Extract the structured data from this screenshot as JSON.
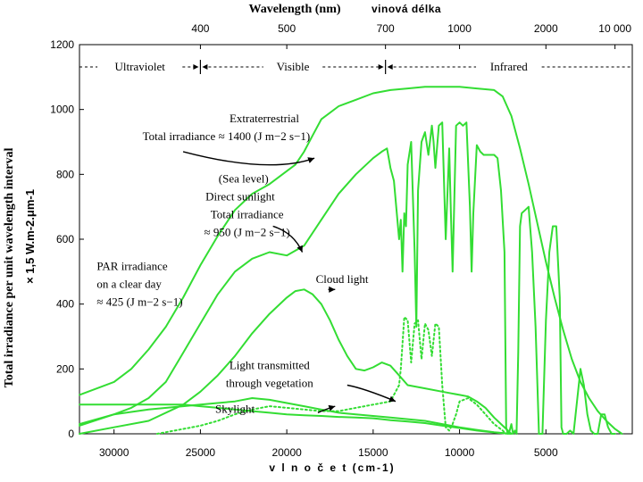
{
  "chart_data": {
    "type": "line",
    "title": "",
    "top_axis_title": "Wavelength (nm)",
    "top_axis_title_czech": "vinová délka",
    "xlabel": "v l n o č e t  (cm-1)",
    "ylabel": "Total irradiance per unit wavelength interval",
    "ylabel_units": "× 1,5 W.m-2.μm-1",
    "xlim": [
      32000,
      0
    ],
    "ylim": [
      0,
      1200
    ],
    "x_ticks": [
      30000,
      25000,
      20000,
      15000,
      10000,
      5000
    ],
    "x_tick_labels": [
      "30000",
      "25000",
      "20000",
      "15000",
      "10000",
      "5000"
    ],
    "y_ticks": [
      0,
      200,
      400,
      600,
      800,
      1000,
      1200
    ],
    "y_tick_labels": [
      "0",
      "200",
      "400",
      "600",
      "800",
      "1000",
      "1200"
    ],
    "top_ticks": [
      {
        "label": "400",
        "wavenumber": 25000
      },
      {
        "label": "500",
        "wavenumber": 20000
      },
      {
        "label": "700",
        "wavenumber": 14286
      },
      {
        "label": "1000",
        "wavenumber": 10000
      },
      {
        "label": "2000",
        "wavenumber": 5000
      },
      {
        "label": "10 000",
        "wavenumber": 1000
      }
    ],
    "regions": [
      {
        "name": "Ultraviolet",
        "from": 32000,
        "to": 25000
      },
      {
        "name": "Visible",
        "from": 25000,
        "to": 14286
      },
      {
        "name": "Infrared",
        "from": 14286,
        "to": 0
      }
    ],
    "color": "#33dd33",
    "series": [
      {
        "name": "Extraterrestrial",
        "style": "solid",
        "x": [
          32000,
          30000,
          29000,
          28000,
          27000,
          26000,
          25000,
          24000,
          23000,
          22000,
          21000,
          20000,
          19500,
          19000,
          18500,
          18000,
          17000,
          16000,
          15000,
          14000,
          13000,
          12000,
          11000,
          10000,
          9000,
          8000,
          7500,
          7000,
          6500,
          6000,
          5500,
          5000,
          4500,
          4000,
          3500,
          3000,
          2500,
          2000,
          1500,
          1000,
          600
        ],
        "values": [
          120,
          160,
          200,
          260,
          330,
          420,
          520,
          610,
          690,
          740,
          770,
          810,
          830,
          870,
          920,
          970,
          1010,
          1030,
          1050,
          1060,
          1065,
          1070,
          1070,
          1070,
          1065,
          1060,
          1040,
          980,
          880,
          770,
          650,
          530,
          420,
          320,
          230,
          160,
          110,
          70,
          40,
          15,
          0
        ]
      },
      {
        "name": "Direct sunlight (sea level)",
        "style": "solid",
        "x": [
          32000,
          30000,
          29000,
          28000,
          27000,
          26000,
          25000,
          24000,
          23000,
          22000,
          21000,
          20000,
          19000,
          18000,
          17000,
          16000,
          15000,
          14500,
          14200,
          14100,
          14000,
          13800,
          13500,
          13400,
          13300,
          13200,
          13100,
          13000,
          12800,
          12600,
          12500,
          12400,
          12200,
          12000,
          11800,
          11600,
          11500,
          11400,
          11200,
          11000,
          10800,
          10600,
          10500,
          10400,
          10200,
          10000,
          9800,
          9600,
          9400,
          9300,
          9200,
          9000,
          8800,
          8600,
          8400,
          8200,
          8000,
          7800,
          7600,
          7400,
          7300,
          7200,
          7100,
          7000,
          6900,
          6800,
          6700,
          6600,
          6500,
          6400,
          6200,
          6000,
          5800,
          5600,
          5400,
          5300,
          5200,
          5000,
          4800,
          4600,
          4400,
          4200,
          4100,
          4000,
          3800,
          3600,
          3400,
          3200,
          3000,
          2800,
          2600,
          2400,
          2200,
          2000,
          1800,
          1600,
          1400,
          1200,
          1000
        ],
        "values": [
          30,
          60,
          80,
          110,
          160,
          250,
          340,
          430,
          500,
          540,
          560,
          550,
          580,
          660,
          740,
          800,
          850,
          870,
          880,
          850,
          820,
          780,
          600,
          660,
          500,
          680,
          640,
          830,
          900,
          560,
          330,
          750,
          900,
          930,
          860,
          950,
          900,
          820,
          950,
          960,
          600,
          880,
          680,
          500,
          950,
          960,
          950,
          960,
          700,
          500,
          680,
          890,
          870,
          860,
          860,
          860,
          860,
          850,
          750,
          560,
          20,
          0,
          10,
          30,
          0,
          10,
          0,
          250,
          640,
          680,
          690,
          700,
          560,
          330,
          0,
          0,
          0,
          350,
          560,
          640,
          640,
          420,
          20,
          0,
          0,
          10,
          0,
          100,
          200,
          150,
          60,
          10,
          0,
          0,
          60,
          60,
          20,
          0,
          0
        ]
      },
      {
        "name": "Cloud light",
        "style": "solid",
        "x": [
          32000,
          30000,
          28000,
          26000,
          25000,
          24000,
          23000,
          22000,
          21000,
          20000,
          19500,
          19000,
          18500,
          18000,
          17500,
          17000,
          16500,
          16000,
          15500,
          15000,
          14500,
          14000,
          13500,
          13000,
          12000,
          11000,
          10000,
          9500,
          9000,
          8500,
          8000,
          7500,
          7000
        ],
        "values": [
          0,
          20,
          40,
          90,
          130,
          180,
          240,
          310,
          370,
          420,
          440,
          445,
          430,
          400,
          350,
          290,
          240,
          200,
          195,
          205,
          220,
          210,
          180,
          150,
          140,
          130,
          120,
          115,
          100,
          80,
          50,
          25,
          0
        ]
      },
      {
        "name": "Skylight",
        "style": "solid",
        "x": [
          32000,
          30000,
          28000,
          26000,
          25000,
          24000,
          23000,
          22000,
          21000,
          20000,
          19000,
          18000,
          17000,
          16000,
          15000,
          14000,
          13000,
          12000,
          11000,
          10000,
          9000,
          8000,
          7000
        ],
        "values": [
          25,
          60,
          75,
          85,
          90,
          95,
          100,
          110,
          105,
          95,
          85,
          75,
          65,
          60,
          55,
          50,
          45,
          40,
          30,
          20,
          12,
          5,
          0
        ]
      },
      {
        "name": "PAR irradiance on a clear day",
        "style": "solid",
        "x": [
          32000,
          30000,
          28000,
          26000,
          25000,
          24000,
          23000,
          22000,
          21000,
          20000,
          19000,
          18000,
          17000,
          16000,
          15000,
          14500,
          14000,
          13000,
          12000,
          11000,
          10000,
          9000,
          8000,
          7000
        ],
        "values": [
          90,
          90,
          90,
          90,
          85,
          80,
          75,
          70,
          65,
          60,
          57,
          55,
          52,
          50,
          48,
          45,
          42,
          38,
          33,
          25,
          18,
          10,
          4,
          0
        ]
      },
      {
        "name": "Light transmitted through vegetation",
        "style": "dotted",
        "x": [
          27500,
          26000,
          25000,
          24000,
          23000,
          22000,
          21000,
          20000,
          19000,
          18000,
          17000,
          16000,
          15000,
          14500,
          14000,
          13500,
          13400,
          13200,
          13000,
          12800,
          12600,
          12400,
          12200,
          12000,
          11800,
          11600,
          11400,
          11200,
          11000,
          10800,
          10600,
          10400,
          10200,
          10000,
          9500,
          9000,
          8500,
          8000,
          7500,
          7300
        ],
        "values": [
          0,
          15,
          25,
          40,
          60,
          75,
          85,
          80,
          75,
          70,
          70,
          80,
          90,
          95,
          100,
          150,
          200,
          360,
          350,
          220,
          340,
          350,
          230,
          340,
          320,
          240,
          340,
          330,
          150,
          20,
          10,
          30,
          60,
          100,
          110,
          90,
          60,
          30,
          10,
          0
        ]
      }
    ],
    "annotations": [
      {
        "text": "Extraterrestrial",
        "x": 21300,
        "y": 960
      },
      {
        "text": "Total irradiance ≈ 1400 (J m−2 s−1)",
        "x": 23500,
        "y": 905
      },
      {
        "text": "(Sea level)",
        "x": 22500,
        "y": 775
      },
      {
        "text": "Direct sunlight",
        "x": 22700,
        "y": 720
      },
      {
        "text": "Total irradiance",
        "x": 22300,
        "y": 665
      },
      {
        "text": "≈ 950 (J m−2 s−1)",
        "x": 22300,
        "y": 610
      },
      {
        "text": "Cloud light",
        "x": 16800,
        "y": 465
      },
      {
        "text": "PAR irradiance",
        "x": 31000,
        "y": 505
      },
      {
        "text": "on a clear day",
        "x": 31000,
        "y": 450
      },
      {
        "text": "≈ 425 (J m−2 s−1)",
        "x": 31000,
        "y": 395
      },
      {
        "text": "Light transmitted",
        "x": 21000,
        "y": 200
      },
      {
        "text": "through vegetation",
        "x": 21000,
        "y": 145
      },
      {
        "text": "Skylight",
        "x": 23000,
        "y": 65
      }
    ]
  }
}
